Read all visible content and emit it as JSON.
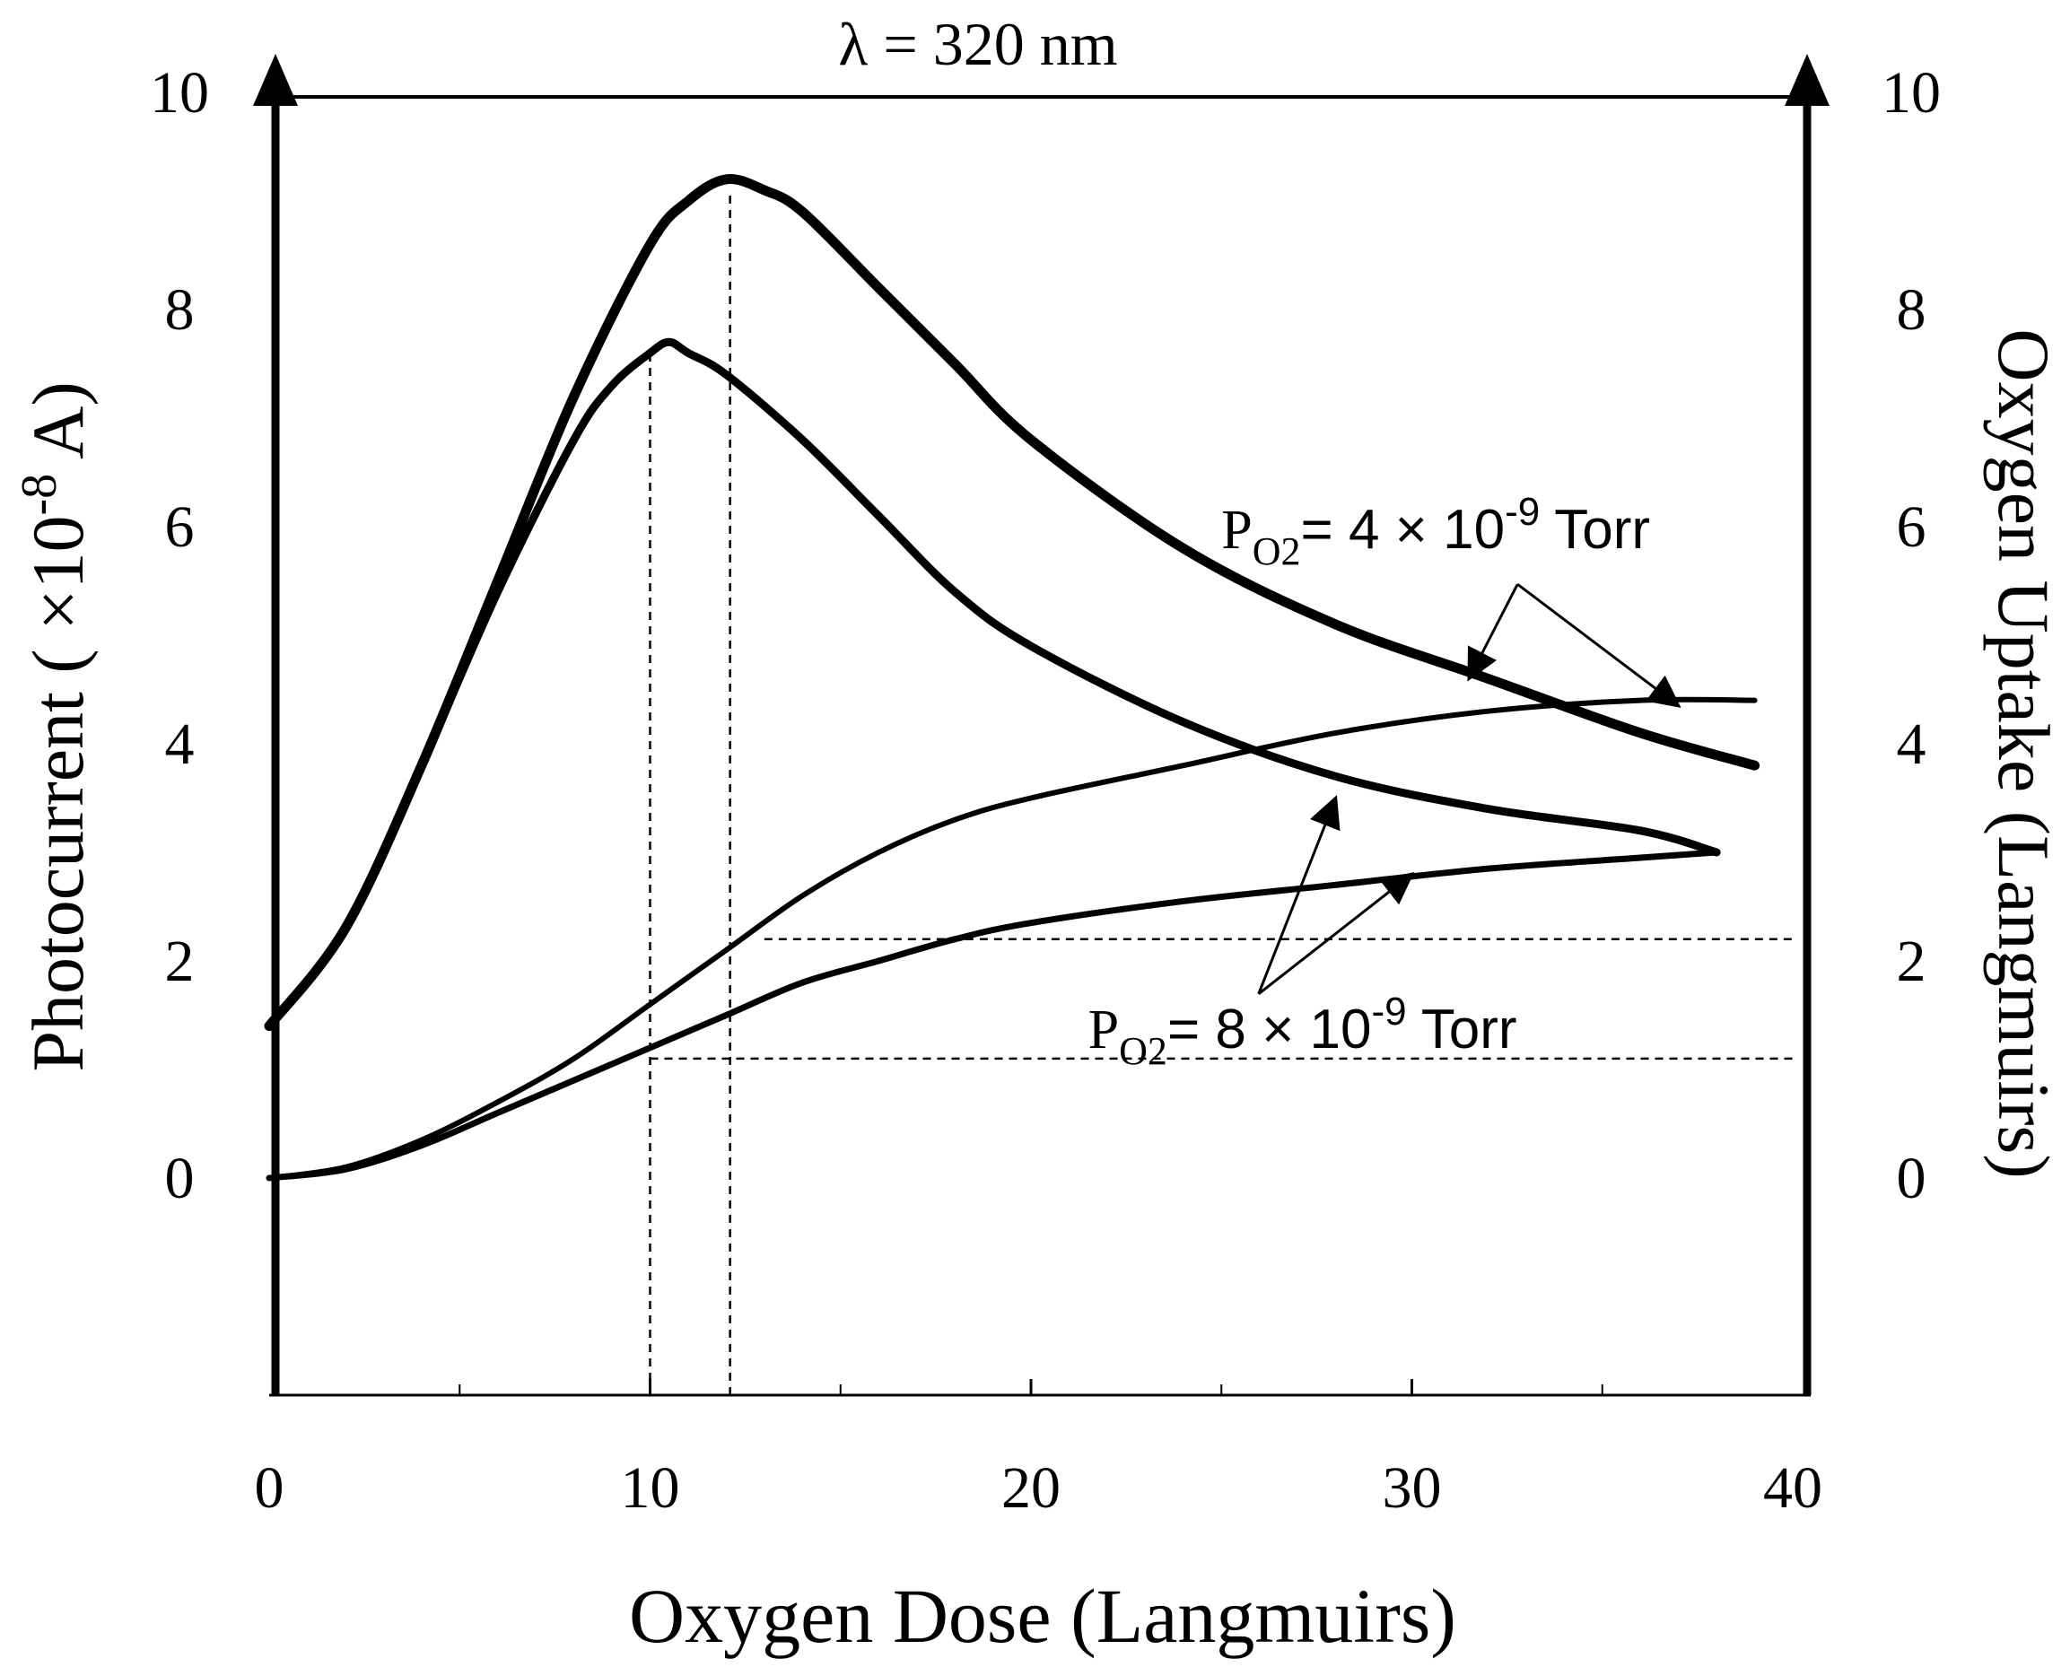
{
  "chart_data": {
    "type": "line",
    "title": "λ = 320 nm",
    "xlabel": "Oxygen Dose (Langmuirs)",
    "ylabel_left": "Photocurrent ( ×10-8 A)",
    "ylabel_left_parts": {
      "main": "Photocurrent ( ×10",
      "sup": "-8",
      "unit": " A)"
    },
    "ylabel_right": "Oxygen Uptake (Langmuirs)",
    "xlim": [
      0,
      40
    ],
    "ylim_left": [
      -2,
      10
    ],
    "ylim_right": [
      -2,
      10
    ],
    "x_ticks": [
      "0",
      "10",
      "20",
      "30",
      "40"
    ],
    "x_tick_values": [
      0,
      10,
      20,
      30,
      40
    ],
    "y_ticks_left": [
      "0",
      "2",
      "4",
      "6",
      "8",
      "10"
    ],
    "y_ticks_right": [
      "0",
      "2",
      "4",
      "6",
      "8",
      "10"
    ],
    "y_tick_values": [
      0,
      2,
      4,
      6,
      8,
      10
    ],
    "series": [
      {
        "name": "Photocurrent, PO2 = 4 × 10-9 Torr",
        "axis": "left",
        "x": [
          0,
          2,
          4,
          6,
          8,
          10,
          11,
          12,
          13,
          14,
          16,
          18,
          20,
          24,
          28,
          32,
          36,
          39
        ],
        "y": [
          1.4,
          2.3,
          3.8,
          5.5,
          7.2,
          8.6,
          9.0,
          9.2,
          9.1,
          8.9,
          8.2,
          7.5,
          6.8,
          5.8,
          5.1,
          4.6,
          4.1,
          3.8
        ]
      },
      {
        "name": "Photocurrent, PO2 = 8 × 10-9 Torr",
        "axis": "left",
        "x": [
          0,
          2,
          4,
          6,
          8,
          9,
          10,
          10.5,
          11,
          12,
          14,
          16,
          18,
          20,
          24,
          28,
          32,
          36,
          38
        ],
        "y": [
          1.4,
          2.3,
          3.8,
          5.4,
          6.8,
          7.3,
          7.6,
          7.7,
          7.6,
          7.4,
          6.8,
          6.1,
          5.4,
          4.9,
          4.2,
          3.7,
          3.4,
          3.2,
          3.0
        ]
      },
      {
        "name": "Oxygen uptake, PO2 = 4 × 10-9 Torr",
        "axis": "right",
        "x": [
          0,
          2,
          4,
          6,
          8,
          10,
          12,
          14,
          16,
          18,
          20,
          24,
          28,
          32,
          36,
          39
        ],
        "y": [
          0,
          0.1,
          0.35,
          0.7,
          1.1,
          1.6,
          2.1,
          2.6,
          3.0,
          3.3,
          3.5,
          3.8,
          4.1,
          4.3,
          4.4,
          4.4
        ]
      },
      {
        "name": "Oxygen uptake, PO2 = 8 × 10-9 Torr",
        "axis": "right",
        "x": [
          0,
          2,
          4,
          6,
          8,
          10,
          12,
          14,
          16,
          18,
          20,
          24,
          28,
          32,
          36,
          38
        ],
        "y": [
          0,
          0.08,
          0.3,
          0.6,
          0.9,
          1.2,
          1.5,
          1.8,
          2.0,
          2.2,
          2.35,
          2.55,
          2.7,
          2.85,
          2.95,
          3.0
        ]
      }
    ],
    "reference_lines": [
      {
        "orientation": "vertical",
        "x": 10,
        "y_range": [
          -2,
          7.6
        ]
      },
      {
        "orientation": "vertical",
        "x": 12.1,
        "y_range": [
          -2,
          9.1
        ]
      },
      {
        "orientation": "horizontal",
        "y": 2.2,
        "x_range": [
          13,
          40
        ]
      },
      {
        "orientation": "horizontal",
        "y": 1.1,
        "x_range": [
          10,
          40
        ]
      }
    ],
    "annotations": [
      {
        "prefix": "P",
        "subscript": "O2",
        "text": "= 4 × 10",
        "superscript": "-9",
        "suffix": " Torr",
        "anchor": {
          "x": 25,
          "y": 5.8
        },
        "arrows_to": [
          {
            "x": 31.5,
            "y": 4.6
          },
          {
            "x": 37,
            "y": 4.35
          }
        ]
      },
      {
        "prefix": "P",
        "subscript": "O2",
        "text": "= 8 × 10",
        "superscript": "-9",
        "suffix": " Torr",
        "anchor": {
          "x": 21.5,
          "y": 1.2
        },
        "arrows_to": [
          {
            "x": 28,
            "y": 3.5
          },
          {
            "x": 30,
            "y": 2.8
          }
        ]
      }
    ]
  }
}
